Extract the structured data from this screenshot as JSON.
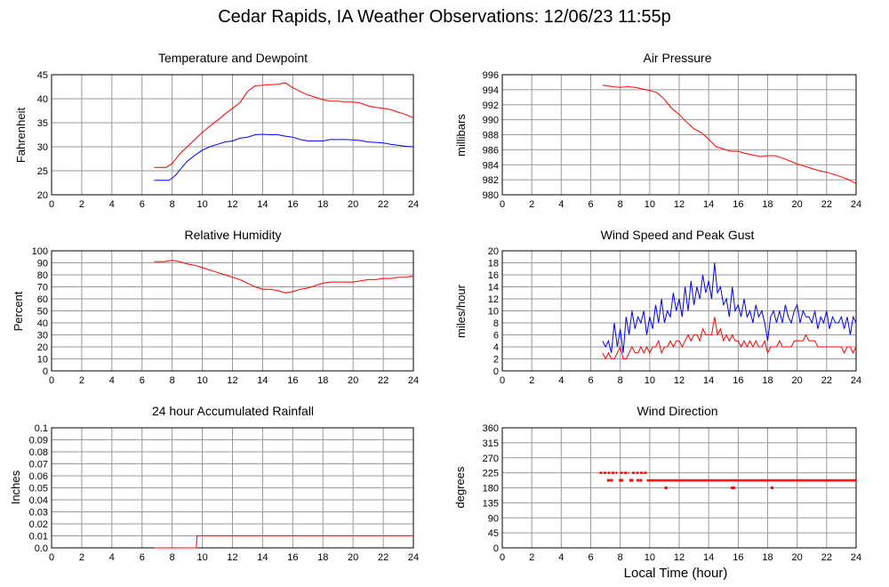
{
  "page": {
    "title": "Cedar Rapids, IA Weather Observations: 12/06/23 11:55p",
    "xlabel": "Local Time (hour)"
  },
  "colors": {
    "red": "#ff0000",
    "blue": "#0000ff",
    "grid": "#9a9a9a",
    "axis": "#000000"
  },
  "chart_data": [
    {
      "id": "temp",
      "type": "line",
      "title": "Temperature and Dewpoint",
      "ylabel": "Fahrenheit",
      "xlim": [
        0,
        24
      ],
      "ylim": [
        20,
        45
      ],
      "xticks": [
        0,
        2,
        4,
        6,
        8,
        10,
        12,
        14,
        16,
        18,
        20,
        22,
        24
      ],
      "yticks": [
        20,
        25,
        30,
        35,
        40,
        45
      ],
      "ytick_labels": [
        "20",
        "25",
        "30",
        "35",
        "40",
        "45"
      ],
      "grid": true,
      "series": [
        {
          "color": "#ff0000",
          "x": [
            6.8,
            7.6,
            8.0,
            8.5,
            9,
            9.5,
            10,
            10.5,
            11,
            11.5,
            12,
            12.5,
            13,
            13.5,
            14,
            14.5,
            15,
            15.5,
            16,
            16.5,
            17,
            17.5,
            18,
            18.5,
            19,
            19.5,
            20,
            20.5,
            21,
            21.5,
            22,
            22.5,
            23,
            23.5,
            24
          ],
          "y": [
            25.7,
            25.7,
            26.5,
            28.5,
            30,
            31.5,
            33,
            34.3,
            35.5,
            36.8,
            38,
            39.2,
            41.5,
            42.7,
            42.8,
            42.9,
            43,
            43.3,
            42.3,
            41.5,
            40.8,
            40.3,
            39.8,
            39.5,
            39.5,
            39.3,
            39.3,
            39.1,
            38.5,
            38.2,
            38.0,
            37.7,
            37.2,
            36.7,
            36.0
          ]
        },
        {
          "color": "#0000ff",
          "x": [
            6.8,
            7.8,
            8.2,
            8.6,
            9,
            9.5,
            10,
            10.5,
            11,
            11.5,
            12,
            12.5,
            13,
            13.5,
            14,
            14.5,
            15,
            15.5,
            16,
            16.5,
            17,
            17.5,
            18,
            18.5,
            19,
            19.5,
            20,
            20.5,
            21,
            21.5,
            22,
            22.5,
            23,
            23.5,
            24
          ],
          "y": [
            23,
            23,
            24,
            25.5,
            27,
            28.2,
            29.3,
            30,
            30.5,
            31,
            31.2,
            31.8,
            32,
            32.5,
            32.6,
            32.5,
            32.5,
            32.2,
            32,
            31.5,
            31.2,
            31.2,
            31.2,
            31.5,
            31.5,
            31.5,
            31.4,
            31.3,
            31,
            30.9,
            30.8,
            30.5,
            30.3,
            30.1,
            30.0
          ]
        }
      ]
    },
    {
      "id": "pres",
      "type": "line",
      "title": "Air Pressure",
      "ylabel": "millibars",
      "xlim": [
        0,
        24
      ],
      "ylim": [
        980,
        996
      ],
      "xticks": [
        0,
        2,
        4,
        6,
        8,
        10,
        12,
        14,
        16,
        18,
        20,
        22,
        24
      ],
      "yticks": [
        980,
        982,
        984,
        986,
        988,
        990,
        992,
        994,
        996
      ],
      "ytick_labels": [
        "980",
        "982",
        "984",
        "986",
        "988",
        "990",
        "992",
        "994",
        "996"
      ],
      "grid": true,
      "series": [
        {
          "color": "#ff0000",
          "x": [
            6.8,
            7.5,
            8,
            8.5,
            9,
            9.5,
            10,
            10.5,
            11,
            11.5,
            12,
            12.5,
            13,
            13.5,
            14,
            14.5,
            15,
            15.5,
            16,
            16.5,
            17,
            17.5,
            18,
            18.5,
            19,
            19.5,
            20,
            20.5,
            21,
            21.5,
            22,
            22.5,
            23,
            23.5,
            24
          ],
          "y": [
            994.6,
            994.4,
            994.3,
            994.4,
            994.3,
            994.1,
            993.9,
            993.6,
            992.7,
            991.5,
            990.7,
            989.7,
            988.8,
            988.3,
            987.4,
            986.4,
            986.1,
            985.8,
            985.8,
            985.5,
            985.3,
            985.1,
            985.2,
            985.2,
            984.9,
            984.5,
            984.1,
            983.8,
            983.5,
            983.2,
            983.0,
            982.7,
            982.4,
            982.0,
            981.5
          ]
        }
      ]
    },
    {
      "id": "rh",
      "type": "line",
      "title": "Relative Humidity",
      "ylabel": "Percent",
      "xlim": [
        0,
        24
      ],
      "ylim": [
        0,
        100
      ],
      "xticks": [
        0,
        2,
        4,
        6,
        8,
        10,
        12,
        14,
        16,
        18,
        20,
        22,
        24
      ],
      "yticks": [
        0,
        10,
        20,
        30,
        40,
        50,
        60,
        70,
        80,
        90,
        100
      ],
      "ytick_labels": [
        "0",
        "10",
        "20",
        "30",
        "40",
        "50",
        "60",
        "70",
        "80",
        "90",
        "100"
      ],
      "grid": true,
      "series": [
        {
          "color": "#ff0000",
          "x": [
            6.8,
            7.5,
            8,
            8.5,
            9,
            9.5,
            10,
            10.5,
            11,
            11.5,
            12,
            12.5,
            13,
            13.5,
            14,
            14.5,
            15,
            15.5,
            16,
            16.5,
            17,
            17.5,
            18,
            18.5,
            19,
            19.5,
            20,
            20.5,
            21,
            21.5,
            22,
            22.5,
            23,
            23.5,
            24
          ],
          "y": [
            91,
            91,
            92,
            91,
            89,
            88,
            86,
            84,
            82,
            80,
            78,
            76,
            73,
            70,
            68,
            68,
            67,
            65,
            66,
            68,
            69,
            71,
            73,
            74,
            74,
            74,
            74,
            75,
            76,
            76,
            77,
            77,
            78,
            78,
            79
          ]
        }
      ]
    },
    {
      "id": "wind",
      "type": "line",
      "title": "Wind Speed and Peak Gust",
      "ylabel": "miles/hour",
      "xlim": [
        0,
        24
      ],
      "ylim": [
        0,
        20
      ],
      "xticks": [
        0,
        2,
        4,
        6,
        8,
        10,
        12,
        14,
        16,
        18,
        20,
        22,
        24
      ],
      "yticks": [
        0,
        2,
        4,
        6,
        8,
        10,
        12,
        14,
        16,
        18,
        20
      ],
      "ytick_labels": [
        "0",
        "2",
        "4",
        "6",
        "8",
        "10",
        "12",
        "14",
        "16",
        "18",
        "20"
      ],
      "grid": true,
      "series": [
        {
          "color": "#0000ff",
          "x": [
            6.8,
            7.0,
            7.2,
            7.4,
            7.6,
            7.8,
            8.0,
            8.2,
            8.4,
            8.6,
            8.8,
            9.0,
            9.2,
            9.4,
            9.6,
            9.8,
            10.0,
            10.2,
            10.4,
            10.6,
            10.8,
            11.0,
            11.2,
            11.4,
            11.6,
            11.8,
            12.0,
            12.2,
            12.4,
            12.6,
            12.8,
            13.0,
            13.2,
            13.4,
            13.6,
            13.8,
            14.0,
            14.2,
            14.4,
            14.6,
            14.8,
            15.0,
            15.2,
            15.4,
            15.6,
            15.8,
            16.0,
            16.2,
            16.4,
            16.6,
            16.8,
            17.0,
            17.2,
            17.4,
            17.6,
            17.8,
            18.0,
            18.2,
            18.4,
            18.6,
            18.8,
            19.0,
            19.2,
            19.4,
            19.6,
            19.8,
            20.0,
            20.2,
            20.4,
            20.6,
            20.8,
            21.0,
            21.2,
            21.4,
            21.6,
            21.8,
            22.0,
            22.2,
            22.4,
            22.6,
            22.8,
            23.0,
            23.2,
            23.4,
            23.6,
            23.8,
            24.0
          ],
          "y": [
            5,
            4,
            5,
            3,
            8,
            4,
            7,
            3,
            9,
            6,
            10,
            7,
            9,
            8,
            10,
            6,
            9,
            7,
            11,
            8,
            12,
            8,
            10,
            9,
            13,
            10,
            12,
            9,
            14,
            10,
            15,
            11,
            14,
            12,
            16,
            13,
            15,
            12,
            18,
            13,
            14,
            11,
            12,
            9,
            14,
            10,
            11,
            9,
            12,
            9,
            10,
            8,
            11,
            9,
            10,
            8,
            5,
            9,
            10,
            8,
            10,
            8,
            11,
            9,
            8,
            10,
            11,
            8,
            10,
            9,
            9,
            8,
            10,
            7,
            9,
            8,
            10,
            7,
            9,
            8,
            8,
            9,
            7,
            9,
            6,
            9,
            8
          ]
        },
        {
          "color": "#ff0000",
          "x": [
            6.8,
            7.0,
            7.2,
            7.4,
            7.6,
            7.8,
            8.0,
            8.2,
            8.4,
            8.6,
            8.8,
            9.0,
            9.2,
            9.4,
            9.6,
            9.8,
            10.0,
            10.2,
            10.4,
            10.6,
            10.8,
            11.0,
            11.2,
            11.4,
            11.6,
            11.8,
            12.0,
            12.2,
            12.4,
            12.6,
            12.8,
            13.0,
            13.2,
            13.4,
            13.6,
            13.8,
            14.0,
            14.2,
            14.4,
            14.6,
            14.8,
            15.0,
            15.2,
            15.4,
            15.6,
            15.8,
            16.0,
            16.2,
            16.4,
            16.6,
            16.8,
            17.0,
            17.2,
            17.4,
            17.6,
            17.8,
            18.0,
            18.2,
            18.4,
            18.6,
            18.8,
            19.0,
            19.2,
            19.4,
            19.6,
            19.8,
            20.0,
            20.2,
            20.4,
            20.6,
            20.8,
            21.0,
            21.2,
            21.4,
            21.6,
            21.8,
            22.0,
            22.2,
            22.4,
            22.6,
            22.8,
            23.0,
            23.2,
            23.4,
            23.6,
            23.8,
            24.0
          ],
          "y": [
            3,
            2,
            3,
            2,
            2,
            3,
            4,
            2,
            2,
            3,
            4,
            3,
            3,
            4,
            3,
            4,
            3,
            4,
            4,
            5,
            3,
            4,
            4,
            5,
            4,
            5,
            5,
            4,
            5,
            6,
            5,
            6,
            6,
            5,
            7,
            6,
            6,
            6,
            9,
            6,
            7,
            5,
            6,
            5,
            6,
            5,
            5,
            4,
            5,
            4,
            5,
            4,
            5,
            4,
            4,
            5,
            3,
            4,
            4,
            4,
            5,
            4,
            4,
            4,
            4,
            5,
            5,
            5,
            5,
            6,
            5,
            5,
            5,
            4,
            4,
            4,
            4,
            4,
            4,
            4,
            4,
            4,
            3,
            4,
            4,
            3,
            4
          ]
        }
      ]
    },
    {
      "id": "rain",
      "type": "line",
      "title": "24 hour Accumulated Rainfall",
      "ylabel": "Inches",
      "xlim": [
        0,
        24
      ],
      "ylim": [
        0,
        0.1
      ],
      "xticks": [
        0,
        2,
        4,
        6,
        8,
        10,
        12,
        14,
        16,
        18,
        20,
        22,
        24
      ],
      "yticks": [
        0,
        0.01,
        0.02,
        0.03,
        0.04,
        0.05,
        0.06,
        0.07,
        0.08,
        0.09,
        0.1
      ],
      "ytick_labels": [
        "0.0",
        "0.01",
        "0.02",
        "0.03",
        "0.04",
        "0.05",
        "0.06",
        "0.07",
        "0.08",
        "0.09",
        "0.1"
      ],
      "grid": true,
      "series": [
        {
          "color": "#ff0000",
          "x": [
            6.8,
            9.6,
            9.65,
            24
          ],
          "y": [
            0,
            0,
            0.01,
            0.01
          ]
        }
      ]
    },
    {
      "id": "dir",
      "type": "scatter",
      "title": "Wind Direction",
      "ylabel": "degrees",
      "xlim": [
        0,
        24
      ],
      "ylim": [
        0,
        360
      ],
      "xticks": [
        0,
        2,
        4,
        6,
        8,
        10,
        12,
        14,
        16,
        18,
        20,
        22,
        24
      ],
      "yticks": [
        0,
        45,
        90,
        135,
        180,
        225,
        270,
        315,
        360
      ],
      "ytick_labels": [
        "0",
        "45",
        "90",
        "135",
        "180",
        "225",
        "270",
        "315",
        "360"
      ],
      "grid": true,
      "series": [
        {
          "color": "#ff0000",
          "segments": [
            {
              "x": [
                6.6,
                7.8
              ],
              "y": 225
            },
            {
              "x": [
                8.0,
                8.6
              ],
              "y": 225
            },
            {
              "x": [
                8.8,
                9.8
              ],
              "y": 225
            },
            {
              "x": [
                9.8,
                24.0
              ],
              "y": 202.5
            }
          ],
          "x": [
            7.2,
            7.4,
            8.0,
            8.1,
            8.7,
            8.8,
            9.2,
            9.4,
            11.1,
            15.6,
            15.7,
            18.3
          ],
          "y": [
            202.5,
            202.5,
            202.5,
            202.5,
            202.5,
            202.5,
            202.5,
            202.5,
            180,
            180,
            180,
            180
          ]
        }
      ]
    }
  ]
}
